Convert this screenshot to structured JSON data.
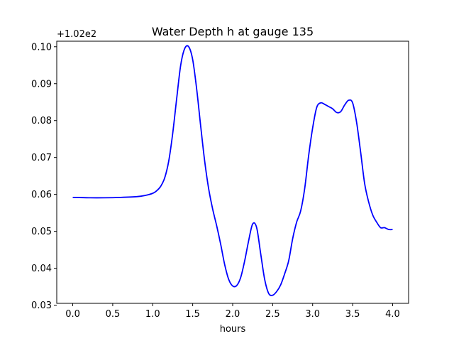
{
  "chart_data": {
    "type": "line",
    "title": "Water Depth h at gauge 135",
    "xlabel": "hours",
    "ylabel": "",
    "offset_label": "+1.02e2",
    "xlim": [
      -0.2,
      4.2
    ],
    "ylim": [
      0.0305,
      0.1015
    ],
    "xticks": [
      0.0,
      0.5,
      1.0,
      1.5,
      2.0,
      2.5,
      3.0,
      3.5,
      4.0
    ],
    "xtick_labels": [
      "0.0",
      "0.5",
      "1.0",
      "1.5",
      "2.0",
      "2.5",
      "3.0",
      "3.5",
      "4.0"
    ],
    "yticks": [
      0.03,
      0.04,
      0.05,
      0.06,
      0.07,
      0.08,
      0.09,
      0.1
    ],
    "ytick_labels": [
      "0.03",
      "0.04",
      "0.05",
      "0.06",
      "0.07",
      "0.08",
      "0.09",
      "0.10"
    ],
    "grid": false,
    "series": [
      {
        "color": "#0000ff",
        "x": [
          0.0,
          0.2,
          0.4,
          0.6,
          0.8,
          0.9,
          1.0,
          1.05,
          1.1,
          1.15,
          1.2,
          1.25,
          1.3,
          1.35,
          1.4,
          1.45,
          1.5,
          1.55,
          1.6,
          1.65,
          1.7,
          1.75,
          1.8,
          1.85,
          1.9,
          1.95,
          2.0,
          2.05,
          2.1,
          2.15,
          2.2,
          2.25,
          2.3,
          2.35,
          2.4,
          2.45,
          2.5,
          2.55,
          2.6,
          2.65,
          2.7,
          2.75,
          2.8,
          2.85,
          2.9,
          2.95,
          3.0,
          3.05,
          3.1,
          3.15,
          3.2,
          3.25,
          3.3,
          3.35,
          3.4,
          3.45,
          3.5,
          3.55,
          3.6,
          3.65,
          3.7,
          3.75,
          3.8,
          3.85,
          3.9,
          3.95,
          4.0
        ],
        "y": [
          0.0592,
          0.0591,
          0.0591,
          0.0592,
          0.0594,
          0.0597,
          0.0603,
          0.061,
          0.0622,
          0.0645,
          0.069,
          0.0765,
          0.086,
          0.095,
          0.0995,
          0.1,
          0.0965,
          0.0885,
          0.0785,
          0.069,
          0.0615,
          0.056,
          0.0515,
          0.0465,
          0.041,
          0.037,
          0.0352,
          0.0353,
          0.0375,
          0.042,
          0.0475,
          0.052,
          0.051,
          0.044,
          0.037,
          0.0332,
          0.0327,
          0.0337,
          0.0355,
          0.0385,
          0.042,
          0.048,
          0.0525,
          0.0555,
          0.0615,
          0.0705,
          0.078,
          0.0835,
          0.0848,
          0.0844,
          0.0838,
          0.0832,
          0.0822,
          0.0824,
          0.0842,
          0.0855,
          0.0848,
          0.0795,
          0.0715,
          0.063,
          0.058,
          0.0545,
          0.0525,
          0.051,
          0.051,
          0.0505,
          0.0505
        ]
      }
    ]
  }
}
